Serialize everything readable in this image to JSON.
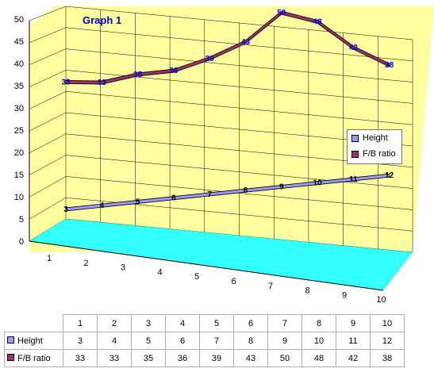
{
  "chart_data": {
    "type": "line",
    "title": "Graph 1",
    "categories": [
      "1",
      "2",
      "3",
      "4",
      "5",
      "6",
      "7",
      "8",
      "9",
      "10"
    ],
    "series": [
      {
        "name": "Height",
        "values": [
          3,
          4,
          5,
          6,
          7,
          8,
          9,
          10,
          11,
          12
        ]
      },
      {
        "name": "F/B ratio",
        "values": [
          33,
          33,
          35,
          36,
          39,
          43,
          50,
          48,
          42,
          38
        ]
      }
    ],
    "yticks": [
      "0",
      "5",
      "10",
      "15",
      "20",
      "25",
      "30",
      "35",
      "40",
      "45",
      "50"
    ],
    "ylim": [
      0,
      50
    ],
    "grid": true,
    "legend_position": "right",
    "data_table": true
  },
  "colors": {
    "wall": "#ffffa0",
    "floor": "#33ffff",
    "height_ribbon": "#9999ff",
    "fb_ribbon": "#993366",
    "label_text": "#0000cc"
  }
}
